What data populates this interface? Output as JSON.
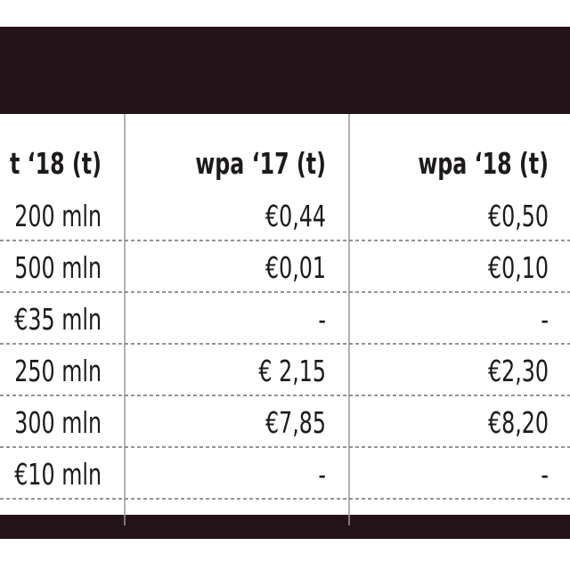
{
  "table": {
    "header": [
      "t ‘18 (t)",
      "wpa ‘17 (t)",
      "wpa ‘18 (t)"
    ],
    "rows": [
      [
        "200 mln",
        "€0,44",
        "€0,50"
      ],
      [
        "500 mln",
        "€0,01",
        "€0,10"
      ],
      [
        "€35 mln",
        "-",
        "-"
      ],
      [
        "250 mln",
        "€ 2,15",
        "€2,30"
      ],
      [
        "300 mln",
        "€7,85",
        "€8,20"
      ],
      [
        "€10 mln",
        "-",
        "-"
      ]
    ]
  }
}
